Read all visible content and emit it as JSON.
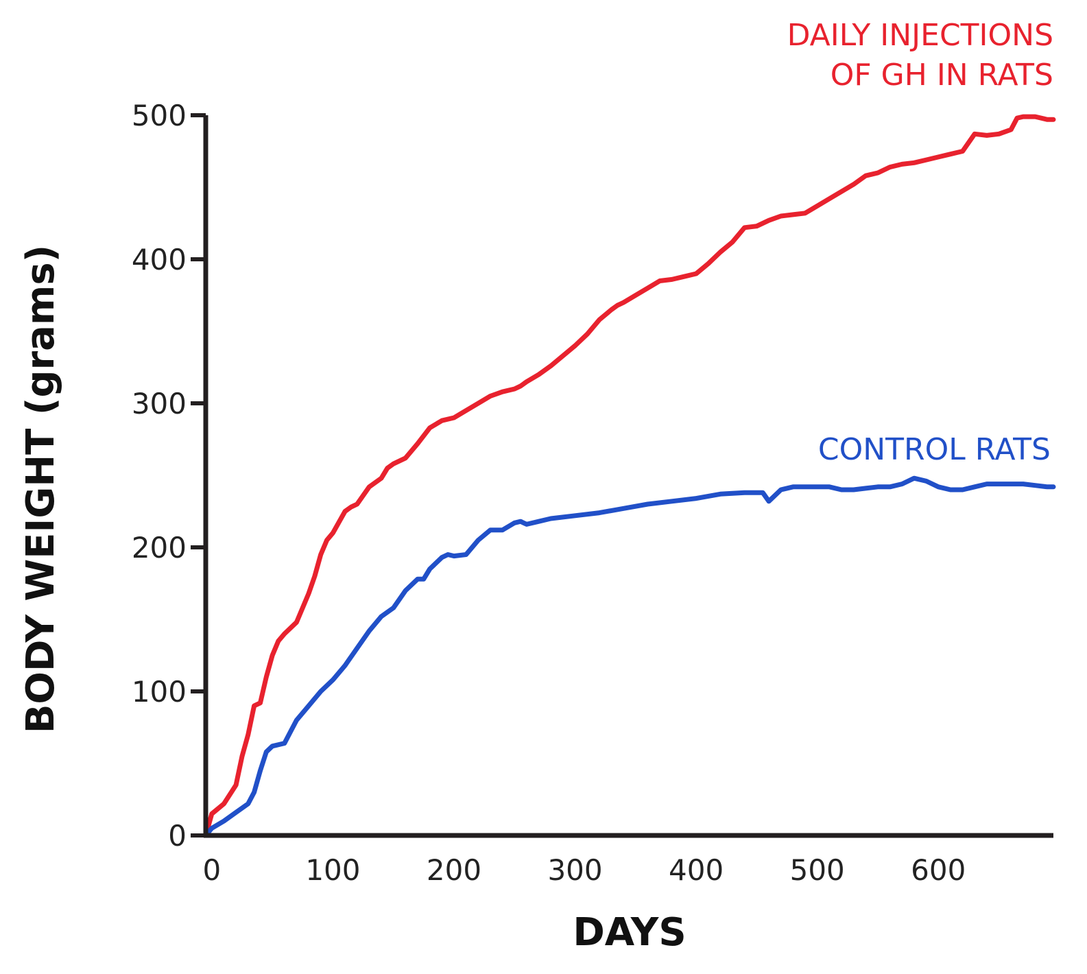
{
  "colors": {
    "gh": "#e8222e",
    "control": "#2150c8",
    "axis": "#231f20"
  },
  "chart_data": {
    "type": "line",
    "title": "",
    "xlabel": "DAYS",
    "ylabel": "BODY WEIGHT (grams)",
    "xlim": [
      -5,
      695
    ],
    "ylim": [
      0,
      500
    ],
    "xticks": [
      0,
      100,
      200,
      300,
      400,
      500,
      600
    ],
    "yticks": [
      0,
      100,
      200,
      300,
      400,
      500
    ],
    "grid": false,
    "series": [
      {
        "name": "DAILY INJECTIONS OF GH IN RATS",
        "label_lines": [
          "DAILY INJECTIONS",
          "OF GH IN RATS"
        ],
        "color": "#e8222e",
        "x": [
          -5,
          0,
          10,
          20,
          25,
          30,
          35,
          40,
          45,
          50,
          55,
          60,
          70,
          80,
          85,
          90,
          95,
          100,
          110,
          115,
          120,
          130,
          140,
          145,
          150,
          160,
          170,
          180,
          190,
          200,
          210,
          220,
          230,
          240,
          250,
          255,
          260,
          270,
          280,
          300,
          310,
          320,
          330,
          335,
          340,
          350,
          360,
          370,
          380,
          390,
          400,
          410,
          420,
          430,
          440,
          450,
          460,
          470,
          480,
          490,
          500,
          510,
          520,
          530,
          540,
          550,
          560,
          570,
          580,
          590,
          600,
          610,
          620,
          630,
          640,
          650,
          660,
          665,
          670,
          680,
          690,
          695
        ],
        "y": [
          0,
          15,
          22,
          35,
          55,
          70,
          90,
          92,
          110,
          125,
          135,
          140,
          148,
          168,
          180,
          195,
          205,
          210,
          225,
          228,
          230,
          242,
          248,
          255,
          258,
          262,
          272,
          283,
          288,
          290,
          295,
          300,
          305,
          308,
          310,
          312,
          315,
          320,
          326,
          340,
          348,
          358,
          365,
          368,
          370,
          375,
          380,
          385,
          386,
          388,
          390,
          397,
          405,
          412,
          422,
          423,
          427,
          430,
          431,
          432,
          437,
          442,
          447,
          452,
          458,
          460,
          464,
          466,
          467,
          469,
          471,
          473,
          475,
          487,
          486,
          487,
          490,
          498,
          499,
          499,
          497,
          497
        ]
      },
      {
        "name": "CONTROL RATS",
        "label_lines": [
          "CONTROL RATS"
        ],
        "color": "#2150c8",
        "x": [
          -5,
          0,
          10,
          20,
          30,
          35,
          40,
          45,
          50,
          60,
          65,
          70,
          80,
          90,
          100,
          110,
          120,
          130,
          140,
          150,
          160,
          170,
          175,
          180,
          190,
          195,
          200,
          210,
          220,
          230,
          240,
          250,
          255,
          260,
          270,
          280,
          300,
          320,
          340,
          360,
          380,
          400,
          420,
          440,
          455,
          460,
          470,
          480,
          490,
          500,
          510,
          520,
          530,
          540,
          550,
          560,
          570,
          580,
          590,
          600,
          610,
          620,
          630,
          640,
          650,
          660,
          670,
          680,
          690,
          695
        ],
        "y": [
          0,
          5,
          10,
          16,
          22,
          30,
          45,
          58,
          62,
          64,
          72,
          80,
          90,
          100,
          108,
          118,
          130,
          142,
          152,
          158,
          170,
          178,
          178,
          185,
          193,
          195,
          194,
          195,
          205,
          212,
          212,
          217,
          218,
          216,
          218,
          220,
          222,
          224,
          227,
          230,
          232,
          234,
          237,
          238,
          238,
          232,
          240,
          242,
          242,
          242,
          242,
          240,
          240,
          241,
          242,
          242,
          244,
          248,
          246,
          242,
          240,
          240,
          242,
          244,
          244,
          244,
          244,
          243,
          242,
          242
        ]
      }
    ]
  }
}
